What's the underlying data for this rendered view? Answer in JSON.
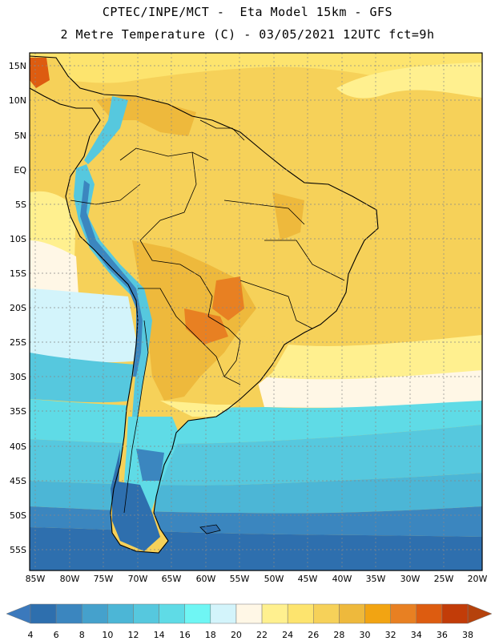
{
  "header": {
    "line1": "CPTEC/INPE/MCT -  Eta Model 15km - GFS",
    "line2": "2 Metre Temperature (C) - 03/05/2021 12UTC fct=9h"
  },
  "axes": {
    "lat_labels": [
      "15N",
      "10N",
      "5N",
      "EQ",
      "5S",
      "10S",
      "15S",
      "20S",
      "25S",
      "30S",
      "35S",
      "40S",
      "45S",
      "50S",
      "55S"
    ],
    "lon_labels": [
      "85W",
      "80W",
      "75W",
      "70W",
      "65W",
      "60W",
      "55W",
      "50W",
      "45W",
      "40W",
      "35W",
      "30W",
      "25W",
      "20W"
    ]
  },
  "colorbar": {
    "labels": [
      "4",
      "6",
      "8",
      "10",
      "12",
      "14",
      "16",
      "18",
      "20",
      "22",
      "24",
      "26",
      "28",
      "30",
      "32",
      "34",
      "36",
      "38"
    ],
    "colors": [
      "#2e6fae",
      "#3b86bf",
      "#45a1cc",
      "#4cb6d6",
      "#56c8de",
      "#5fdbe6",
      "#6ff6f4",
      "#d3f4fb",
      "#fff7e6",
      "#fff08f",
      "#fde46e",
      "#f6d159",
      "#eeb93c",
      "#f2a412",
      "#e88022",
      "#dd5c10",
      "#c23c08"
    ],
    "left_arrow_color": "#3b79bc",
    "right_arrow_color": "#b5420c"
  },
  "ocean_colors": {
    "n_atlantic": "#f6d159",
    "cream": "#fff7e6",
    "light_cyan": "#d3f4fb",
    "cyan": "#5fdbe6",
    "teal": "#4cb6d6",
    "mid_blue": "#3b86bf",
    "deep_blue": "#2e6fae"
  }
}
